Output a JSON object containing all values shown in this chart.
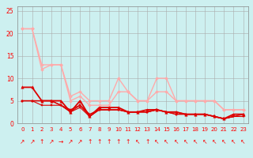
{
  "title": "",
  "ylabel": "",
  "background_color": "#cdf0f0",
  "grid_color": "#aaaaaa",
  "xlim": [
    -0.5,
    23.5
  ],
  "ylim": [
    0,
    26
  ],
  "yticks": [
    0,
    5,
    10,
    15,
    20,
    25
  ],
  "xticks": [
    0,
    1,
    2,
    3,
    4,
    5,
    6,
    7,
    8,
    9,
    10,
    11,
    12,
    13,
    14,
    15,
    16,
    17,
    18,
    19,
    20,
    21,
    22,
    23
  ],
  "series": [
    {
      "x": [
        0,
        1,
        2,
        3,
        4,
        5,
        6,
        7,
        8,
        9,
        10,
        11,
        12,
        13,
        14,
        15,
        16,
        17,
        18,
        19,
        20,
        21,
        22,
        23
      ],
      "y": [
        21,
        21,
        13,
        13,
        13,
        6,
        7,
        5,
        5,
        5,
        10,
        7,
        5,
        5,
        10,
        10,
        5,
        5,
        5,
        5,
        5,
        3,
        3,
        3
      ],
      "color": "#ffaaaa",
      "lw": 1.0,
      "marker": "D",
      "ms": 2.0
    },
    {
      "x": [
        0,
        1,
        2,
        3,
        4,
        5,
        6,
        7,
        8,
        9,
        10,
        11,
        12,
        13,
        14,
        15,
        16,
        17,
        18,
        19,
        20,
        21,
        22,
        23
      ],
      "y": [
        21,
        21,
        12,
        13,
        13,
        5,
        6,
        4,
        4,
        4,
        7,
        7,
        5,
        5,
        7,
        7,
        5,
        5,
        5,
        5,
        5,
        3,
        3,
        3
      ],
      "color": "#ffaaaa",
      "lw": 1.0,
      "marker": "D",
      "ms": 2.0
    },
    {
      "x": [
        0,
        1,
        2,
        3,
        4,
        5,
        6,
        7,
        8,
        9,
        10,
        11,
        12,
        13,
        14,
        15,
        16,
        17,
        18,
        19,
        20,
        21,
        22,
        23
      ],
      "y": [
        8,
        8,
        5,
        5,
        5,
        2.5,
        5,
        1.5,
        3.5,
        3.5,
        3.5,
        2.5,
        2.5,
        3,
        3,
        2.5,
        2.5,
        2,
        2,
        2,
        1.5,
        1,
        2,
        2
      ],
      "color": "#dd0000",
      "lw": 1.3,
      "marker": "^",
      "ms": 2.5
    },
    {
      "x": [
        0,
        1,
        2,
        3,
        4,
        5,
        6,
        7,
        8,
        9,
        10,
        11,
        12,
        13,
        14,
        15,
        16,
        17,
        18,
        19,
        20,
        21,
        22,
        23
      ],
      "y": [
        5,
        5,
        5,
        5,
        4,
        3,
        4,
        2,
        3,
        3,
        3,
        2.5,
        2.5,
        2.5,
        3,
        2.5,
        2.5,
        2,
        2,
        2,
        1.5,
        1,
        1.5,
        2
      ],
      "color": "#dd0000",
      "lw": 1.0,
      "marker": "s",
      "ms": 2.0
    },
    {
      "x": [
        0,
        1,
        2,
        3,
        4,
        5,
        6,
        7,
        8,
        9,
        10,
        11,
        12,
        13,
        14,
        15,
        16,
        17,
        18,
        19,
        20,
        21,
        22,
        23
      ],
      "y": [
        5,
        5,
        5,
        5,
        4,
        2.5,
        4,
        1.5,
        3,
        3,
        3,
        2.5,
        2.5,
        2.5,
        3,
        2.5,
        2,
        2,
        2,
        2,
        1.5,
        1,
        1.5,
        1.5
      ],
      "color": "#dd0000",
      "lw": 0.8,
      "marker": "s",
      "ms": 1.8
    },
    {
      "x": [
        0,
        1,
        2,
        3,
        4,
        5,
        6,
        7,
        8,
        9,
        10,
        11,
        12,
        13,
        14,
        15,
        16,
        17,
        18,
        19,
        20,
        21,
        22,
        23
      ],
      "y": [
        5,
        5,
        4,
        4,
        4,
        2.5,
        3.5,
        1.5,
        3,
        3,
        3,
        2.5,
        2.5,
        2.5,
        3,
        2.5,
        2,
        2,
        2,
        2,
        1.5,
        1,
        1.5,
        1.5
      ],
      "color": "#dd0000",
      "lw": 0.8,
      "marker": "s",
      "ms": 1.8
    }
  ],
  "wind_arrows": [
    {
      "x": 0,
      "char": "↗"
    },
    {
      "x": 1,
      "char": "↗"
    },
    {
      "x": 2,
      "char": "↑"
    },
    {
      "x": 3,
      "char": "↗"
    },
    {
      "x": 4,
      "char": "→"
    },
    {
      "x": 5,
      "char": "↗"
    },
    {
      "x": 6,
      "char": "↗"
    },
    {
      "x": 7,
      "char": "↑"
    },
    {
      "x": 8,
      "char": "↑"
    },
    {
      "x": 9,
      "char": "↑"
    },
    {
      "x": 10,
      "char": "↑"
    },
    {
      "x": 11,
      "char": "↑"
    },
    {
      "x": 12,
      "char": "↖"
    },
    {
      "x": 13,
      "char": "↑"
    },
    {
      "x": 14,
      "char": "↖"
    },
    {
      "x": 15,
      "char": "↖"
    },
    {
      "x": 16,
      "char": "↖"
    },
    {
      "x": 17,
      "char": "↖"
    },
    {
      "x": 18,
      "char": "↖"
    },
    {
      "x": 19,
      "char": "↖"
    },
    {
      "x": 20,
      "char": "↖"
    },
    {
      "x": 21,
      "char": "↖"
    },
    {
      "x": 22,
      "char": "↖"
    },
    {
      "x": 23,
      "char": "↖"
    }
  ]
}
